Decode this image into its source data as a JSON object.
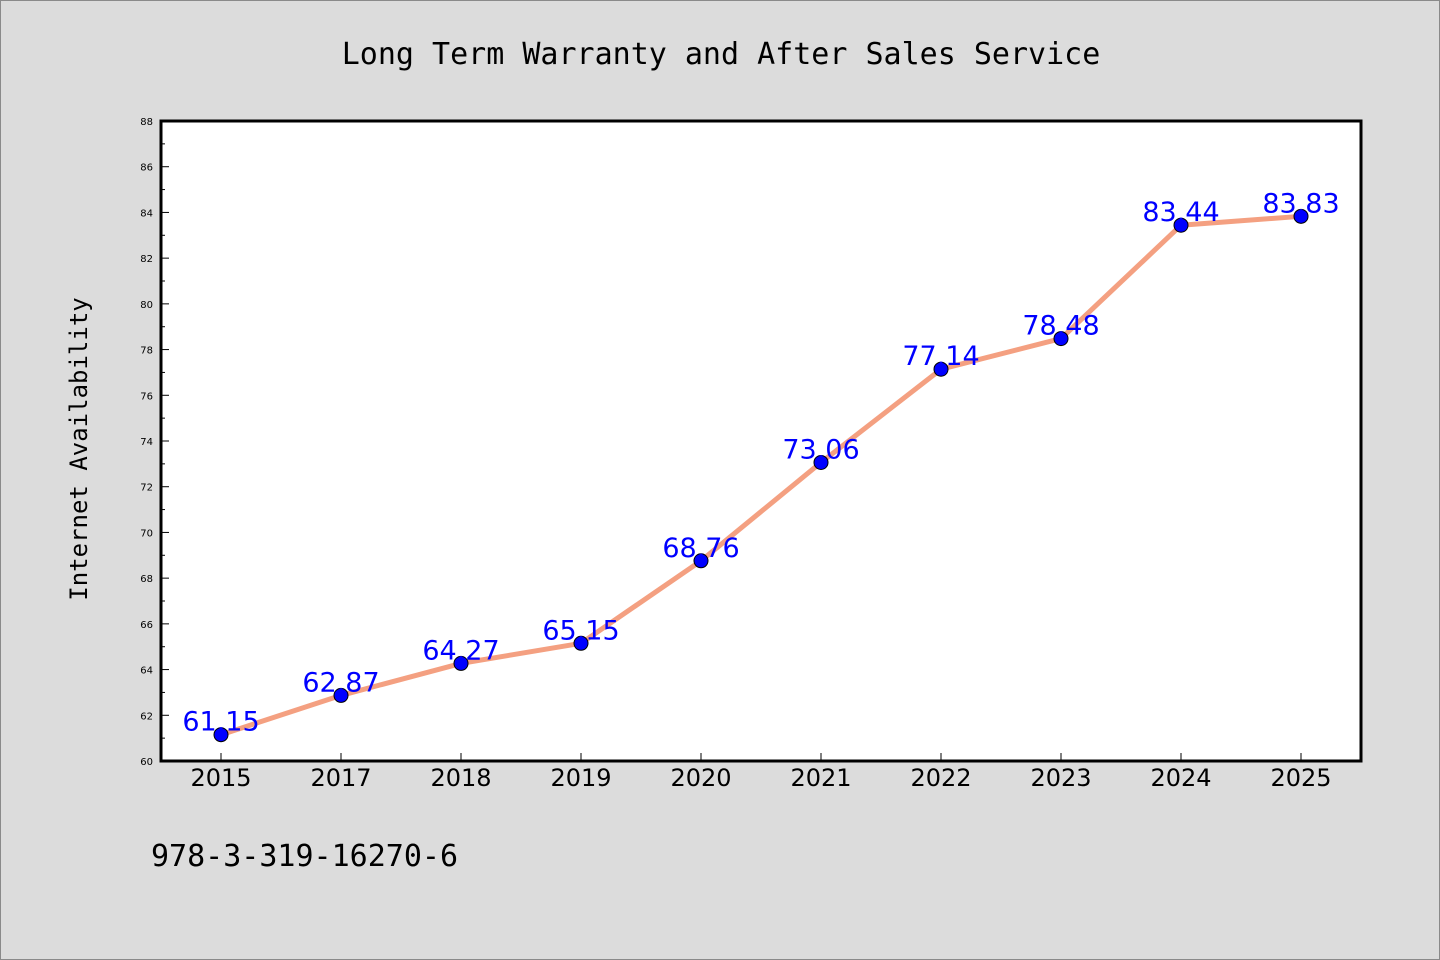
{
  "colors": {
    "figure_background": "#dcdcdc",
    "plot_background": "#ffffff",
    "line": "#f4a081",
    "marker": "#0000ff",
    "data_label": "#0000ff",
    "text": "#000000"
  },
  "footer_text": "978-3-319-16270-6",
  "chart_data": {
    "type": "line",
    "title": "Long Term Warranty and After Sales Service",
    "xlabel": "",
    "ylabel": "Internet Availability",
    "categories": [
      "2015",
      "2017",
      "2018",
      "2019",
      "2020",
      "2021",
      "2022",
      "2023",
      "2024",
      "2025"
    ],
    "series": [
      {
        "values": [
          61.15,
          62.87,
          64.27,
          65.15,
          68.76,
          73.06,
          77.14,
          78.48,
          83.44,
          83.83
        ],
        "data_labels": [
          "61.15",
          "62.87",
          "64.27",
          "65.15",
          "68.76",
          "73.06",
          "77.14",
          "78.48",
          "83.44",
          "83.83"
        ]
      }
    ],
    "ylim": [
      60,
      88
    ],
    "y_ticks": [
      "60",
      "62",
      "64",
      "66",
      "68",
      "70",
      "72",
      "74",
      "76",
      "78",
      "80",
      "82",
      "84",
      "86",
      "88"
    ],
    "grid": false,
    "legend": "none"
  }
}
